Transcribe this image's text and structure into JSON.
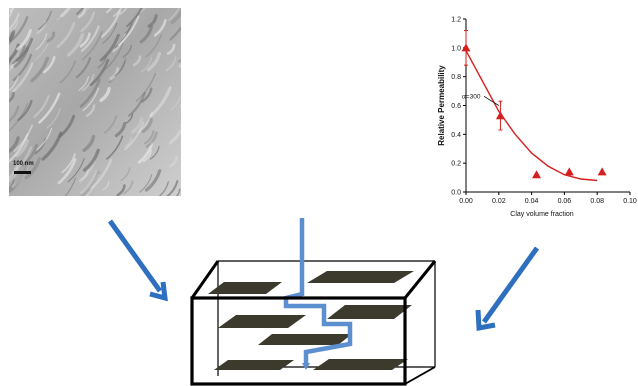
{
  "tem_image": {
    "scale_label": "100 nm"
  },
  "chart_data": {
    "type": "scatter",
    "title": "",
    "xlabel": "Clay volume fraction",
    "ylabel": "Relative Permeability",
    "xlim": [
      0.0,
      0.1
    ],
    "ylim": [
      0.0,
      1.2
    ],
    "x_ticks": [
      "0.00",
      "0.02",
      "0.04",
      "0.06",
      "0.08",
      "0.10"
    ],
    "y_ticks": [
      "0.0",
      "0.2",
      "0.4",
      "0.6",
      "0.8",
      "1.0",
      "1.2"
    ],
    "series": [
      {
        "name": "",
        "kind": "points",
        "marker": "triangle",
        "color": "#d62020",
        "x": [
          0.0,
          0.021,
          0.043,
          0.063,
          0.083
        ],
        "y": [
          1.0,
          0.53,
          0.12,
          0.14,
          0.14
        ],
        "err": [
          0.12,
          0.1,
          0.0,
          0.0,
          0.0
        ]
      },
      {
        "name": "",
        "kind": "fit-curve",
        "color": "#d62020",
        "x": [
          0.0,
          0.01,
          0.02,
          0.03,
          0.04,
          0.05,
          0.06,
          0.07,
          0.08
        ],
        "y": [
          0.98,
          0.77,
          0.56,
          0.4,
          0.27,
          0.18,
          0.12,
          0.09,
          0.08
        ]
      }
    ],
    "annotation": {
      "text": "α=300",
      "x": 0.011,
      "y": 0.65
    },
    "grid": false,
    "legend": "none"
  },
  "colors": {
    "arrow": "#2f6fc0",
    "path": "#5b8fd0",
    "platelet": "#3b3a2c",
    "box_line": "#000000",
    "data": "#d62020"
  },
  "icons": {
    "left_arrow": "arrow-down-right-icon",
    "right_arrow": "arrow-down-left-icon"
  }
}
